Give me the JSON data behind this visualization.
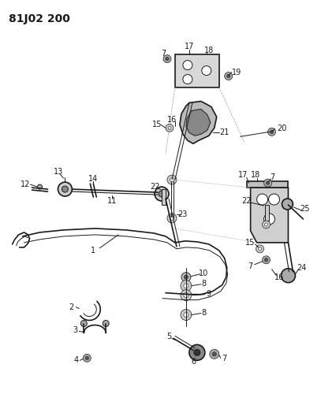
{
  "title": "81J02 200",
  "bg_color": "#ffffff",
  "line_color": "#1a1a1a",
  "title_fontsize": 10,
  "label_fontsize": 7,
  "fig_width": 4.07,
  "fig_height": 5.33,
  "dpi": 100
}
